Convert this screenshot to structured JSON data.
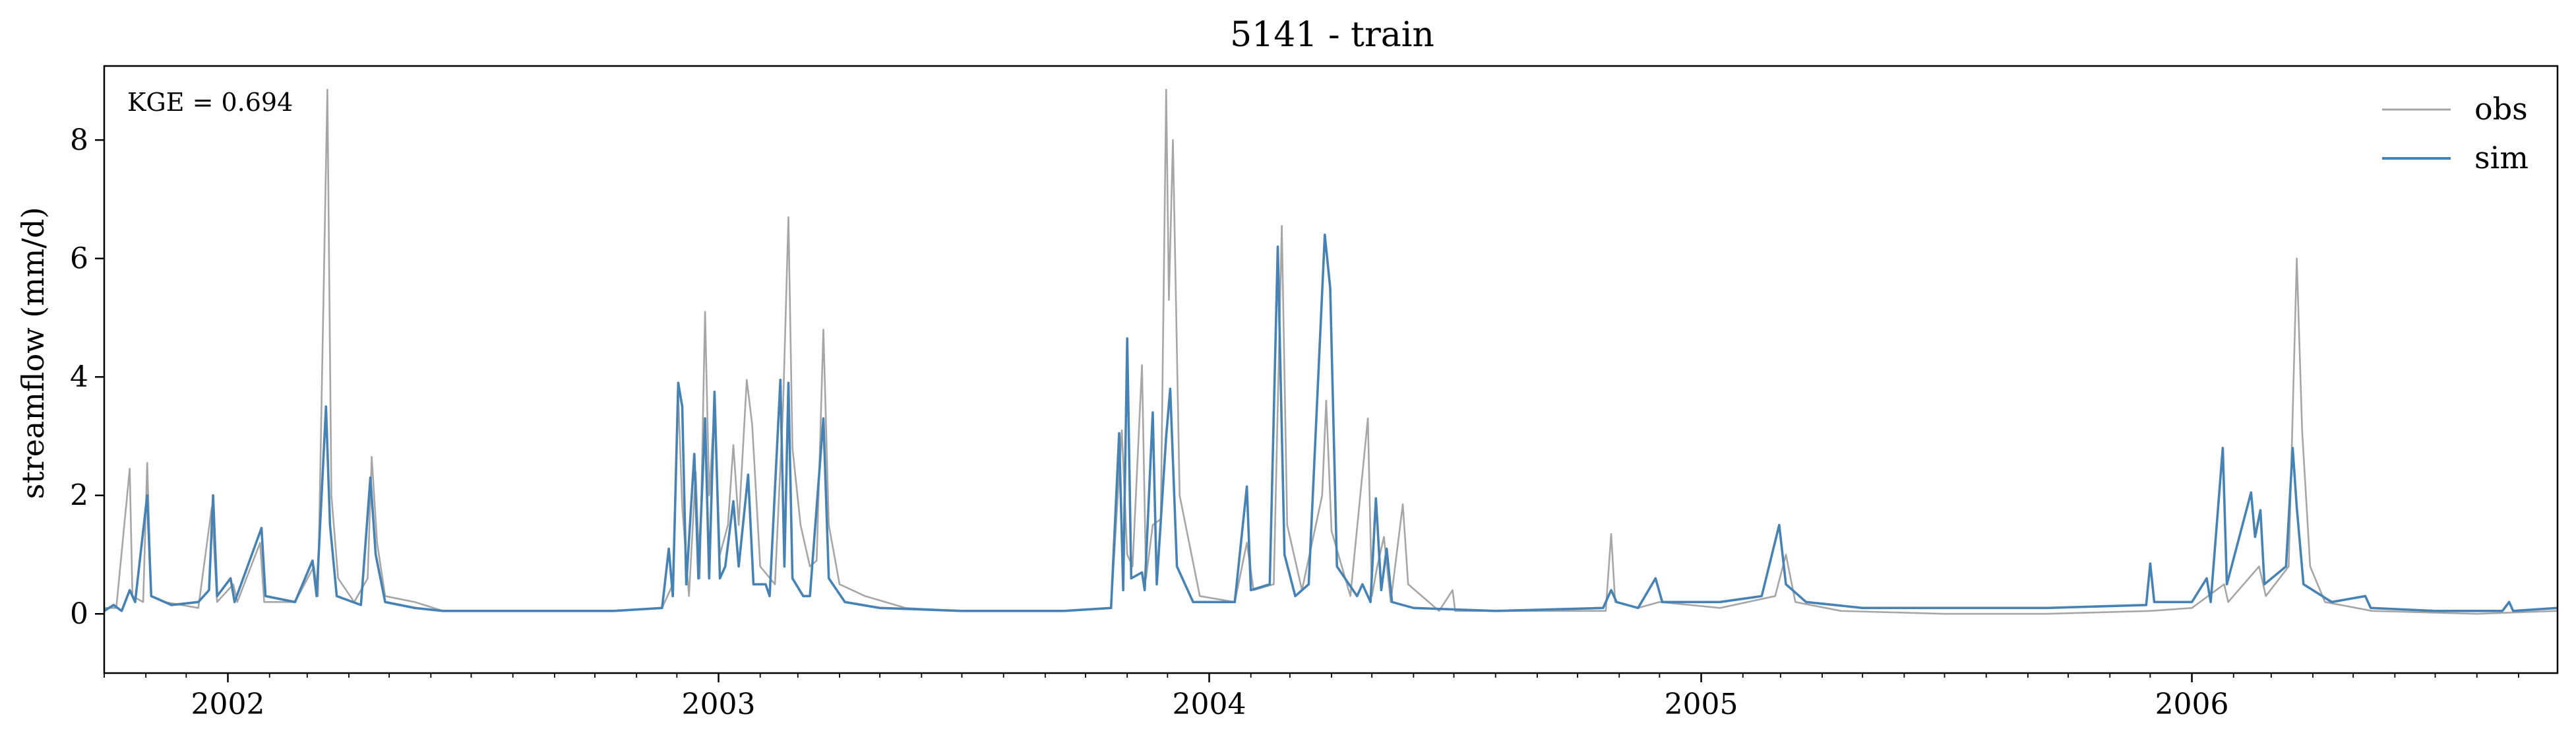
{
  "chart_data": {
    "type": "line",
    "title": "5141 - train",
    "ylabel": "streamflow (mm/d)",
    "xlabel": "",
    "xlim": [
      "2001-10-01",
      "2006-09-30"
    ],
    "ylim": [
      -1.0,
      9.25
    ],
    "yticks": [
      0,
      2,
      4,
      6,
      8
    ],
    "xticks": [
      {
        "date": "2002-01-01",
        "label": "2002"
      },
      {
        "date": "2003-01-01",
        "label": "2003"
      },
      {
        "date": "2004-01-01",
        "label": "2004"
      },
      {
        "date": "2005-01-01",
        "label": "2005"
      },
      {
        "date": "2006-01-01",
        "label": "2006"
      }
    ],
    "annotation": "KGE = 0.694",
    "legend_position": "upper right",
    "series": [
      {
        "name": "obs",
        "color": "#a6a6a6",
        "points": [
          [
            "2001-10-01",
            0.1
          ],
          [
            "2001-10-10",
            0.1
          ],
          [
            "2001-10-20",
            2.45
          ],
          [
            "2001-10-22",
            0.3
          ],
          [
            "2001-10-30",
            0.2
          ],
          [
            "2001-11-02",
            2.55
          ],
          [
            "2001-11-05",
            0.3
          ],
          [
            "2001-11-15",
            0.2
          ],
          [
            "2001-12-10",
            0.1
          ],
          [
            "2001-12-20",
            1.8
          ],
          [
            "2001-12-24",
            0.2
          ],
          [
            "2002-01-05",
            0.5
          ],
          [
            "2002-01-08",
            0.2
          ],
          [
            "2002-01-25",
            1.2
          ],
          [
            "2002-01-28",
            0.2
          ],
          [
            "2002-02-20",
            0.2
          ],
          [
            "2002-03-06",
            0.8
          ],
          [
            "2002-03-09",
            0.3
          ],
          [
            "2002-03-16",
            8.85
          ],
          [
            "2002-03-19",
            2.0
          ],
          [
            "2002-03-24",
            0.6
          ],
          [
            "2002-04-05",
            0.2
          ],
          [
            "2002-04-15",
            0.6
          ],
          [
            "2002-04-18",
            2.65
          ],
          [
            "2002-04-22",
            1.2
          ],
          [
            "2002-04-28",
            0.3
          ],
          [
            "2002-05-20",
            0.2
          ],
          [
            "2002-06-10",
            0.05
          ],
          [
            "2002-08-01",
            0.05
          ],
          [
            "2002-10-15",
            0.05
          ],
          [
            "2002-11-20",
            0.1
          ],
          [
            "2002-11-28",
            0.5
          ],
          [
            "2002-12-02",
            3.7
          ],
          [
            "2002-12-05",
            1.8
          ],
          [
            "2002-12-10",
            0.3
          ],
          [
            "2002-12-15",
            2.4
          ],
          [
            "2002-12-18",
            0.6
          ],
          [
            "2002-12-22",
            5.1
          ],
          [
            "2002-12-25",
            2.0
          ],
          [
            "2002-12-29",
            3.5
          ],
          [
            "2003-01-02",
            1.0
          ],
          [
            "2003-01-08",
            1.5
          ],
          [
            "2003-01-12",
            2.85
          ],
          [
            "2003-01-16",
            1.5
          ],
          [
            "2003-01-22",
            3.95
          ],
          [
            "2003-01-26",
            3.2
          ],
          [
            "2003-02-01",
            0.8
          ],
          [
            "2003-02-12",
            0.5
          ],
          [
            "2003-02-18",
            3.5
          ],
          [
            "2003-02-22",
            6.7
          ],
          [
            "2003-02-25",
            2.8
          ],
          [
            "2003-03-03",
            1.5
          ],
          [
            "2003-03-10",
            0.8
          ],
          [
            "2003-03-15",
            0.9
          ],
          [
            "2003-03-20",
            4.8
          ],
          [
            "2003-03-24",
            1.5
          ],
          [
            "2003-04-01",
            0.5
          ],
          [
            "2003-04-20",
            0.3
          ],
          [
            "2003-05-20",
            0.1
          ],
          [
            "2003-07-01",
            0.05
          ],
          [
            "2003-09-15",
            0.05
          ],
          [
            "2003-10-20",
            0.1
          ],
          [
            "2003-10-28",
            3.1
          ],
          [
            "2003-11-01",
            1.0
          ],
          [
            "2003-11-05",
            0.8
          ],
          [
            "2003-11-12",
            4.2
          ],
          [
            "2003-11-15",
            0.6
          ],
          [
            "2003-11-20",
            1.5
          ],
          [
            "2003-11-26",
            1.6
          ],
          [
            "2003-11-30",
            8.85
          ],
          [
            "2003-12-02",
            5.3
          ],
          [
            "2003-12-05",
            8.0
          ],
          [
            "2003-12-10",
            2.0
          ],
          [
            "2003-12-25",
            0.3
          ],
          [
            "2004-01-20",
            0.2
          ],
          [
            "2004-01-29",
            1.2
          ],
          [
            "2004-02-03",
            0.4
          ],
          [
            "2004-02-18",
            0.5
          ],
          [
            "2004-02-24",
            6.55
          ],
          [
            "2004-02-28",
            1.5
          ],
          [
            "2004-03-10",
            0.4
          ],
          [
            "2004-03-25",
            2.0
          ],
          [
            "2004-03-28",
            3.6
          ],
          [
            "2004-04-01",
            1.4
          ],
          [
            "2004-04-15",
            0.3
          ],
          [
            "2004-04-28",
            3.3
          ],
          [
            "2004-05-01",
            0.3
          ],
          [
            "2004-05-05",
            0.8
          ],
          [
            "2004-05-10",
            1.3
          ],
          [
            "2004-05-15",
            0.2
          ],
          [
            "2004-05-24",
            1.85
          ],
          [
            "2004-05-28",
            0.5
          ],
          [
            "2004-06-20",
            0.05
          ],
          [
            "2004-06-30",
            0.4
          ],
          [
            "2004-07-02",
            0.05
          ],
          [
            "2004-09-01",
            0.05
          ],
          [
            "2004-10-22",
            0.05
          ],
          [
            "2004-10-26",
            1.35
          ],
          [
            "2004-10-29",
            0.2
          ],
          [
            "2004-11-15",
            0.1
          ],
          [
            "2004-12-01",
            0.2
          ],
          [
            "2005-01-15",
            0.1
          ],
          [
            "2005-02-25",
            0.3
          ],
          [
            "2005-03-05",
            1.0
          ],
          [
            "2005-03-12",
            0.2
          ],
          [
            "2005-04-15",
            0.05
          ],
          [
            "2005-07-01",
            0.0
          ],
          [
            "2005-09-15",
            0.0
          ],
          [
            "2005-12-01",
            0.05
          ],
          [
            "2006-01-01",
            0.1
          ],
          [
            "2006-01-25",
            0.5
          ],
          [
            "2006-01-28",
            0.2
          ],
          [
            "2006-02-20",
            0.8
          ],
          [
            "2006-02-25",
            0.3
          ],
          [
            "2006-03-14",
            0.8
          ],
          [
            "2006-03-20",
            6.0
          ],
          [
            "2006-03-24",
            3.1
          ],
          [
            "2006-03-30",
            0.8
          ],
          [
            "2006-04-10",
            0.2
          ],
          [
            "2006-05-15",
            0.05
          ],
          [
            "2006-08-01",
            0.0
          ],
          [
            "2006-09-30",
            0.05
          ]
        ]
      },
      {
        "name": "sim",
        "color": "#4682b4",
        "points": [
          [
            "2001-10-01",
            0.05
          ],
          [
            "2001-10-08",
            0.15
          ],
          [
            "2001-10-14",
            0.05
          ],
          [
            "2001-10-20",
            0.4
          ],
          [
            "2001-10-24",
            0.2
          ],
          [
            "2001-11-02",
            2.0
          ],
          [
            "2001-11-05",
            0.3
          ],
          [
            "2001-11-20",
            0.15
          ],
          [
            "2001-12-10",
            0.2
          ],
          [
            "2001-12-18",
            0.4
          ],
          [
            "2001-12-21",
            2.0
          ],
          [
            "2001-12-24",
            0.3
          ],
          [
            "2002-01-03",
            0.6
          ],
          [
            "2002-01-06",
            0.2
          ],
          [
            "2002-01-26",
            1.45
          ],
          [
            "2002-01-29",
            0.3
          ],
          [
            "2002-02-20",
            0.2
          ],
          [
            "2002-03-05",
            0.9
          ],
          [
            "2002-03-08",
            0.3
          ],
          [
            "2002-03-15",
            3.5
          ],
          [
            "2002-03-18",
            1.5
          ],
          [
            "2002-03-23",
            0.3
          ],
          [
            "2002-04-10",
            0.15
          ],
          [
            "2002-04-17",
            2.3
          ],
          [
            "2002-04-21",
            1.0
          ],
          [
            "2002-04-28",
            0.2
          ],
          [
            "2002-05-20",
            0.1
          ],
          [
            "2002-06-10",
            0.05
          ],
          [
            "2002-08-01",
            0.05
          ],
          [
            "2002-10-15",
            0.05
          ],
          [
            "2002-11-20",
            0.1
          ],
          [
            "2002-11-25",
            1.1
          ],
          [
            "2002-11-28",
            0.3
          ],
          [
            "2002-12-02",
            3.9
          ],
          [
            "2002-12-05",
            3.5
          ],
          [
            "2002-12-08",
            0.5
          ],
          [
            "2002-12-14",
            2.7
          ],
          [
            "2002-12-17",
            0.6
          ],
          [
            "2002-12-22",
            3.3
          ],
          [
            "2002-12-25",
            0.6
          ],
          [
            "2002-12-29",
            3.75
          ],
          [
            "2003-01-02",
            0.6
          ],
          [
            "2003-01-06",
            0.8
          ],
          [
            "2003-01-12",
            1.9
          ],
          [
            "2003-01-16",
            0.8
          ],
          [
            "2003-01-23",
            2.35
          ],
          [
            "2003-01-27",
            0.5
          ],
          [
            "2003-02-05",
            0.5
          ],
          [
            "2003-02-08",
            0.3
          ],
          [
            "2003-02-16",
            3.95
          ],
          [
            "2003-02-19",
            0.8
          ],
          [
            "2003-02-22",
            3.9
          ],
          [
            "2003-02-25",
            0.6
          ],
          [
            "2003-03-05",
            0.3
          ],
          [
            "2003-03-10",
            0.3
          ],
          [
            "2003-03-20",
            3.3
          ],
          [
            "2003-03-24",
            0.6
          ],
          [
            "2003-04-05",
            0.2
          ],
          [
            "2003-05-01",
            0.1
          ],
          [
            "2003-07-01",
            0.05
          ],
          [
            "2003-09-15",
            0.05
          ],
          [
            "2003-10-20",
            0.1
          ],
          [
            "2003-10-26",
            3.05
          ],
          [
            "2003-10-29",
            0.4
          ],
          [
            "2003-11-01",
            4.65
          ],
          [
            "2003-11-04",
            0.6
          ],
          [
            "2003-11-12",
            0.7
          ],
          [
            "2003-11-14",
            0.4
          ],
          [
            "2003-11-20",
            3.4
          ],
          [
            "2003-11-23",
            0.5
          ],
          [
            "2003-11-30",
            3.0
          ],
          [
            "2003-12-03",
            3.8
          ],
          [
            "2003-12-08",
            0.8
          ],
          [
            "2003-12-20",
            0.2
          ],
          [
            "2004-01-20",
            0.2
          ],
          [
            "2004-01-29",
            2.15
          ],
          [
            "2004-02-01",
            0.4
          ],
          [
            "2004-02-15",
            0.5
          ],
          [
            "2004-02-21",
            6.2
          ],
          [
            "2004-02-26",
            1.0
          ],
          [
            "2004-03-05",
            0.3
          ],
          [
            "2004-03-15",
            0.5
          ],
          [
            "2004-03-27",
            6.4
          ],
          [
            "2004-03-31",
            5.5
          ],
          [
            "2004-04-05",
            0.8
          ],
          [
            "2004-04-20",
            0.3
          ],
          [
            "2004-04-24",
            0.5
          ],
          [
            "2004-04-30",
            0.2
          ],
          [
            "2004-05-04",
            1.95
          ],
          [
            "2004-05-08",
            0.4
          ],
          [
            "2004-05-12",
            1.1
          ],
          [
            "2004-05-16",
            0.2
          ],
          [
            "2004-06-01",
            0.1
          ],
          [
            "2004-08-01",
            0.05
          ],
          [
            "2004-10-20",
            0.1
          ],
          [
            "2004-10-26",
            0.4
          ],
          [
            "2004-10-30",
            0.2
          ],
          [
            "2004-11-15",
            0.1
          ],
          [
            "2004-11-28",
            0.6
          ],
          [
            "2004-12-03",
            0.2
          ],
          [
            "2005-01-15",
            0.2
          ],
          [
            "2005-02-15",
            0.3
          ],
          [
            "2005-02-28",
            1.5
          ],
          [
            "2005-03-05",
            0.5
          ],
          [
            "2005-03-20",
            0.2
          ],
          [
            "2005-05-01",
            0.1
          ],
          [
            "2005-07-01",
            0.1
          ],
          [
            "2005-09-15",
            0.1
          ],
          [
            "2005-11-28",
            0.15
          ],
          [
            "2005-12-01",
            0.85
          ],
          [
            "2005-12-04",
            0.2
          ],
          [
            "2006-01-01",
            0.2
          ],
          [
            "2006-01-12",
            0.6
          ],
          [
            "2006-01-15",
            0.2
          ],
          [
            "2006-01-24",
            2.8
          ],
          [
            "2006-01-27",
            0.5
          ],
          [
            "2006-02-14",
            2.05
          ],
          [
            "2006-02-17",
            1.3
          ],
          [
            "2006-02-21",
            1.75
          ],
          [
            "2006-02-24",
            0.5
          ],
          [
            "2006-03-12",
            0.8
          ],
          [
            "2006-03-17",
            2.8
          ],
          [
            "2006-03-20",
            1.8
          ],
          [
            "2006-03-25",
            0.5
          ],
          [
            "2006-04-15",
            0.2
          ],
          [
            "2006-05-10",
            0.3
          ],
          [
            "2006-05-14",
            0.1
          ],
          [
            "2006-07-01",
            0.05
          ],
          [
            "2006-08-20",
            0.05
          ],
          [
            "2006-08-25",
            0.2
          ],
          [
            "2006-08-28",
            0.05
          ],
          [
            "2006-09-30",
            0.1
          ]
        ]
      }
    ]
  }
}
